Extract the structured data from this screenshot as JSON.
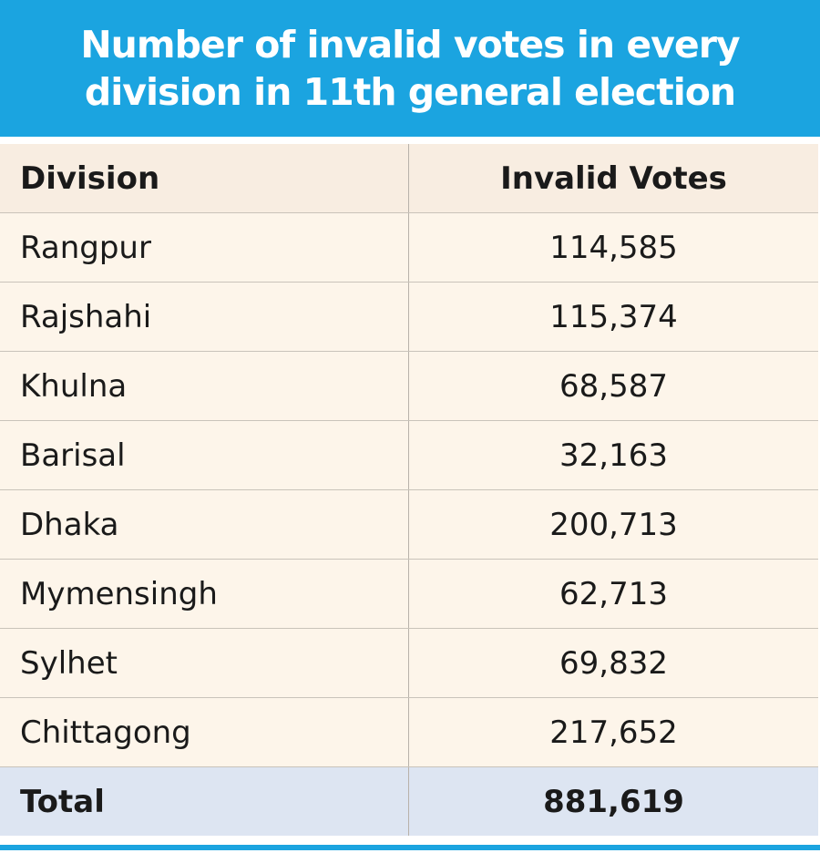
{
  "header": {
    "title": "Number of invalid votes in every division in 11th general election"
  },
  "table": {
    "columns": [
      "Division",
      "Invalid Votes"
    ],
    "rows": [
      [
        "Rangpur",
        "114,585"
      ],
      [
        "Rajshahi",
        "115,374"
      ],
      [
        "Khulna",
        "68,587"
      ],
      [
        "Barisal",
        "32,163"
      ],
      [
        "Dhaka",
        "200,713"
      ],
      [
        "Mymensingh",
        "62,713"
      ],
      [
        "Sylhet",
        "69,832"
      ],
      [
        "Chittagong",
        "217,652"
      ]
    ],
    "total": [
      "Total",
      "881,619"
    ]
  }
}
